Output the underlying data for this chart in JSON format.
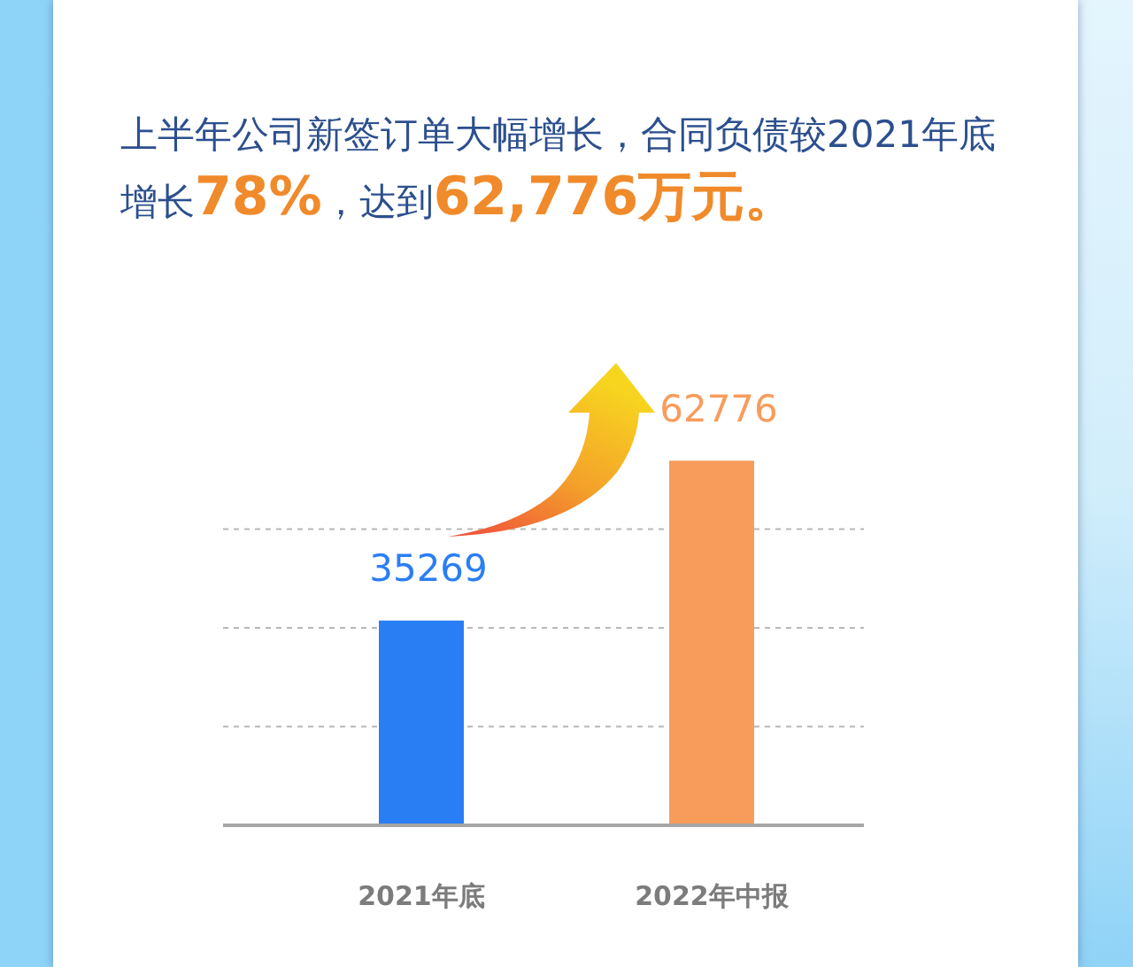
{
  "chart_data": {
    "type": "bar",
    "title": "上半年公司新签订单大幅增长，合同负债较2021年底增长78%，达到62,776万元。",
    "categories": [
      "2021年底",
      "2022年中报"
    ],
    "values": [
      35269,
      62776
    ],
    "colors": [
      "#2a7ef4",
      "#f89c5c"
    ],
    "data_labels": true,
    "grid": "y",
    "tick_labels": "x"
  }
}
